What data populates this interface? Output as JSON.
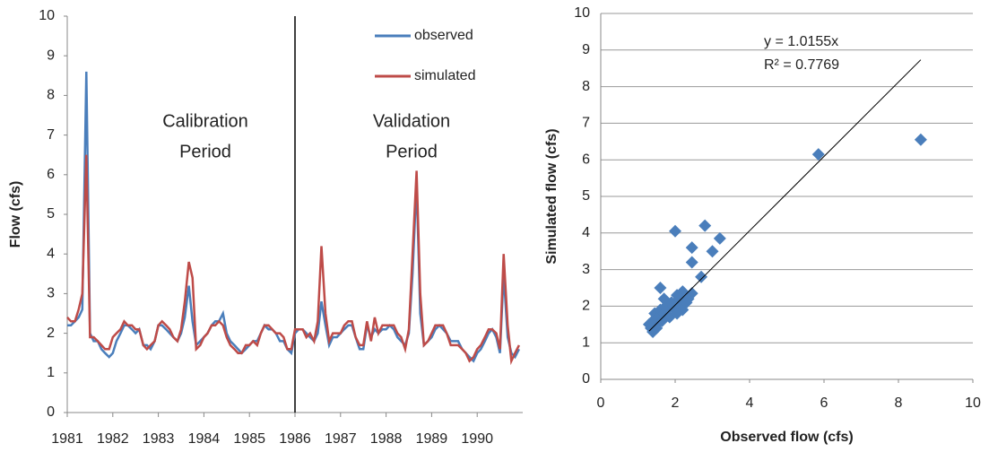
{
  "chart_data": [
    {
      "type": "line",
      "ylabel": "Flow (cfs)",
      "x": [
        1981,
        1981.08,
        1981.17,
        1981.25,
        1981.33,
        1981.42,
        1981.5,
        1981.58,
        1981.67,
        1981.75,
        1981.83,
        1981.92,
        1982,
        1982.08,
        1982.17,
        1982.25,
        1982.33,
        1982.42,
        1982.5,
        1982.58,
        1982.67,
        1982.75,
        1982.83,
        1982.92,
        1983,
        1983.08,
        1983.17,
        1983.25,
        1983.33,
        1983.42,
        1983.5,
        1983.58,
        1983.67,
        1983.75,
        1983.83,
        1983.92,
        1984,
        1984.08,
        1984.17,
        1984.25,
        1984.33,
        1984.42,
        1984.5,
        1984.58,
        1984.67,
        1984.75,
        1984.83,
        1984.92,
        1985,
        1985.08,
        1985.17,
        1985.25,
        1985.33,
        1985.42,
        1985.5,
        1985.58,
        1985.67,
        1985.75,
        1985.83,
        1985.92,
        1986,
        1986.08,
        1986.17,
        1986.25,
        1986.33,
        1986.42,
        1986.5,
        1986.58,
        1986.67,
        1986.75,
        1986.83,
        1986.92,
        1987,
        1987.08,
        1987.17,
        1987.25,
        1987.33,
        1987.42,
        1987.5,
        1987.58,
        1987.67,
        1987.75,
        1987.83,
        1987.92,
        1988,
        1988.08,
        1988.17,
        1988.25,
        1988.33,
        1988.42,
        1988.5,
        1988.58,
        1988.67,
        1988.75,
        1988.83,
        1988.92,
        1989,
        1989.08,
        1989.17,
        1989.25,
        1989.33,
        1989.42,
        1989.5,
        1989.58,
        1989.67,
        1989.75,
        1989.83,
        1989.92,
        1990,
        1990.08,
        1990.17,
        1990.25,
        1990.33,
        1990.42,
        1990.5,
        1990.58,
        1990.67,
        1990.75,
        1990.83,
        1990.92
      ],
      "series": [
        {
          "name": "observed",
          "color": "#4a7ebb",
          "values": [
            2.2,
            2.2,
            2.3,
            2.4,
            2.6,
            8.6,
            2.0,
            1.8,
            1.8,
            1.6,
            1.5,
            1.4,
            1.5,
            1.8,
            2.0,
            2.2,
            2.2,
            2.1,
            2.0,
            2.1,
            1.7,
            1.7,
            1.6,
            1.8,
            2.2,
            2.2,
            2.1,
            2.0,
            1.9,
            1.8,
            2.0,
            2.4,
            3.2,
            2.3,
            1.7,
            1.8,
            1.9,
            2.0,
            2.2,
            2.3,
            2.3,
            2.5,
            2.0,
            1.8,
            1.7,
            1.6,
            1.5,
            1.6,
            1.7,
            1.8,
            1.8,
            2.0,
            2.2,
            2.1,
            2.1,
            2.0,
            1.8,
            1.8,
            1.6,
            1.5,
            2.0,
            2.1,
            2.1,
            2.0,
            1.9,
            1.8,
            2.0,
            2.8,
            2.2,
            1.7,
            1.9,
            1.9,
            2.0,
            2.1,
            2.2,
            2.2,
            1.9,
            1.6,
            1.6,
            2.2,
            1.9,
            2.1,
            2.0,
            2.1,
            2.1,
            2.2,
            2.1,
            1.9,
            1.8,
            1.7,
            2.0,
            3.5,
            5.8,
            2.5,
            1.7,
            1.8,
            1.9,
            2.1,
            2.2,
            2.1,
            2.0,
            1.8,
            1.8,
            1.8,
            1.6,
            1.5,
            1.4,
            1.3,
            1.5,
            1.6,
            1.8,
            2.0,
            2.1,
            1.9,
            1.5,
            3.5,
            1.9,
            1.5,
            1.4,
            1.6
          ]
        },
        {
          "name": "simulated",
          "color": "#be4b48",
          "values": [
            2.4,
            2.3,
            2.3,
            2.6,
            3.0,
            6.5,
            1.9,
            1.9,
            1.8,
            1.7,
            1.6,
            1.6,
            1.9,
            2.0,
            2.1,
            2.3,
            2.2,
            2.2,
            2.1,
            2.1,
            1.7,
            1.6,
            1.7,
            1.8,
            2.2,
            2.3,
            2.2,
            2.1,
            1.9,
            1.8,
            2.1,
            2.8,
            3.8,
            3.4,
            1.6,
            1.7,
            1.9,
            2.0,
            2.2,
            2.2,
            2.3,
            2.2,
            1.9,
            1.7,
            1.6,
            1.5,
            1.5,
            1.7,
            1.7,
            1.8,
            1.7,
            2.0,
            2.2,
            2.2,
            2.1,
            2.0,
            2.0,
            1.9,
            1.6,
            1.6,
            2.1,
            2.1,
            2.1,
            1.9,
            2.0,
            1.8,
            2.3,
            4.2,
            2.5,
            1.8,
            2.0,
            2.0,
            2.0,
            2.2,
            2.3,
            2.3,
            1.9,
            1.7,
            1.7,
            2.3,
            1.8,
            2.4,
            2.0,
            2.2,
            2.2,
            2.2,
            2.2,
            2.0,
            1.9,
            1.6,
            2.1,
            4.0,
            6.1,
            3.0,
            1.7,
            1.8,
            2.0,
            2.2,
            2.2,
            2.2,
            2.0,
            1.7,
            1.7,
            1.7,
            1.6,
            1.5,
            1.3,
            1.4,
            1.6,
            1.7,
            1.9,
            2.1,
            2.1,
            2.0,
            1.6,
            4.0,
            2.2,
            1.3,
            1.5,
            1.7
          ]
        }
      ],
      "xlim": [
        1981,
        1991
      ],
      "xticks": [
        1981,
        1982,
        1983,
        1984,
        1985,
        1986,
        1987,
        1988,
        1989,
        1990
      ],
      "ylim": [
        0,
        10
      ],
      "yticks": [
        0,
        1,
        2,
        3,
        4,
        5,
        6,
        7,
        8,
        9,
        10
      ],
      "annotations": [
        [
          "Calibration",
          "Period"
        ],
        [
          "Validation",
          "Period"
        ]
      ],
      "grid": false,
      "legend": "upper right"
    },
    {
      "type": "scatter",
      "xlabel": "Observed flow (cfs)",
      "ylabel": "Simulated flow (cfs)",
      "color": "#4a7ebb",
      "x": [
        8.6,
        5.85,
        2.0,
        2.8,
        3.2,
        2.45,
        3.0,
        2.45,
        2.7,
        1.6,
        2.45,
        2.2,
        2.05,
        1.4,
        1.35,
        1.4,
        1.5,
        1.45,
        1.55,
        1.6,
        1.7,
        1.75,
        1.8,
        1.9,
        1.95,
        2.0,
        2.1,
        2.15,
        2.2,
        2.3,
        2.35,
        1.85,
        1.65,
        1.5,
        1.3,
        2.05,
        1.7
      ],
      "values": [
        6.55,
        6.15,
        4.05,
        4.2,
        3.85,
        3.6,
        3.5,
        3.2,
        2.8,
        2.5,
        2.35,
        2.4,
        2.3,
        1.3,
        1.4,
        1.6,
        1.5,
        1.8,
        1.7,
        1.9,
        1.8,
        2.0,
        1.9,
        2.1,
        2.0,
        1.9,
        2.2,
        2.0,
        1.9,
        2.1,
        2.2,
        1.7,
        1.6,
        1.4,
        1.5,
        1.8,
        2.2
      ],
      "xlim": [
        0,
        10
      ],
      "xticks": [
        0,
        2,
        4,
        6,
        8,
        10
      ],
      "ylim": [
        0,
        10
      ],
      "yticks": [
        0,
        1,
        2,
        3,
        4,
        5,
        6,
        7,
        8,
        9,
        10
      ],
      "trendline_slope": 1.0155,
      "trendline_xrange": [
        1.3,
        8.6
      ],
      "annotations": [
        "y = 1.0155x",
        "R² = 0.7769"
      ],
      "grid": true
    }
  ]
}
